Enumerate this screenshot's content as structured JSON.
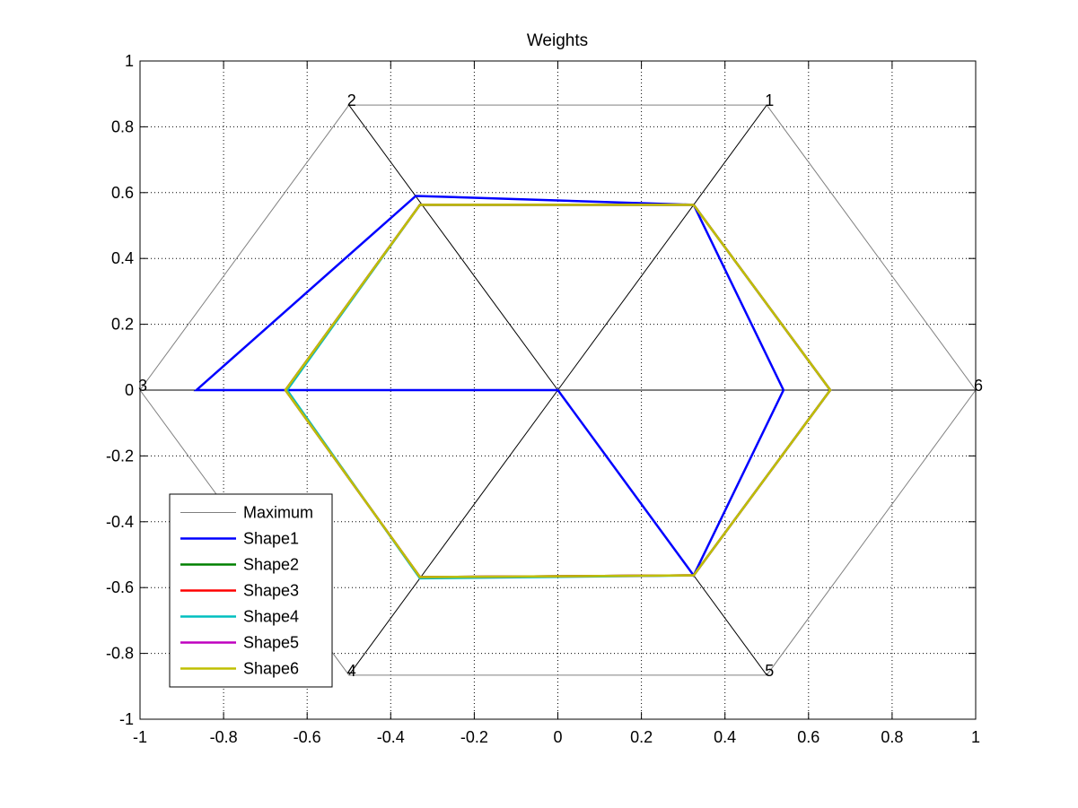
{
  "chart_data": {
    "type": "line",
    "title": "Weights",
    "xlabel": "",
    "ylabel": "",
    "xlim": [
      -1,
      1
    ],
    "ylim": [
      -1,
      1
    ],
    "xticks": [
      -1,
      -0.8,
      -0.6,
      -0.4,
      -0.2,
      0,
      0.2,
      0.4,
      0.6,
      0.8,
      1
    ],
    "yticks": [
      -1,
      -0.8,
      -0.6,
      -0.4,
      -0.2,
      0,
      0.2,
      0.4,
      0.6,
      0.8,
      1
    ],
    "xtick_labels": [
      "-1",
      "-0.8",
      "-0.6",
      "-0.4",
      "-0.2",
      "0",
      "0.2",
      "0.4",
      "0.6",
      "0.8",
      "1"
    ],
    "ytick_labels": [
      "-1",
      "-0.8",
      "-0.6",
      "-0.4",
      "-0.2",
      "0",
      "0.2",
      "0.4",
      "0.6",
      "0.8",
      "1"
    ],
    "grid": true,
    "grid_style": "dotted",
    "legend_position": "bottom-left",
    "spokes": {
      "color": "#000000",
      "segments": [
        [
          [
            -0.5,
            0.866
          ],
          [
            0.5,
            -0.866
          ]
        ],
        [
          [
            0.5,
            0.866
          ],
          [
            -0.5,
            -0.866
          ]
        ],
        [
          [
            -1,
            0
          ],
          [
            1,
            0
          ]
        ]
      ]
    },
    "vertices": [
      {
        "label": "1",
        "x": 0.5,
        "y": 0.866
      },
      {
        "label": "2",
        "x": -0.5,
        "y": 0.866
      },
      {
        "label": "3",
        "x": -1,
        "y": 0
      },
      {
        "label": "4",
        "x": -0.5,
        "y": -0.866
      },
      {
        "label": "5",
        "x": 0.5,
        "y": -0.866
      },
      {
        "label": "6",
        "x": 1,
        "y": 0
      }
    ],
    "series": [
      {
        "name": "Maximum",
        "color": "#808080",
        "width": 1,
        "x": [
          0.5,
          -0.5,
          -1,
          -0.5,
          0.5,
          1,
          0.5
        ],
        "y": [
          0.866,
          0.866,
          0,
          -0.866,
          -0.866,
          0,
          0.866
        ]
      },
      {
        "name": "Shape1",
        "color": "#0000ff",
        "width": 2.5,
        "x": [
          0.325,
          -0.34,
          -0.865,
          0,
          0.325,
          0.54,
          0.325
        ],
        "y": [
          0.563,
          0.59,
          0,
          0,
          -0.563,
          0,
          0.563
        ]
      },
      {
        "name": "Shape2",
        "color": "#008000",
        "width": 2.5,
        "x": [
          0.325,
          -0.33,
          -0.652,
          -0.33,
          0.325,
          0.652,
          0.325
        ],
        "y": [
          0.563,
          0.563,
          0,
          -0.568,
          -0.563,
          0,
          0.563
        ]
      },
      {
        "name": "Shape3",
        "color": "#ff0000",
        "width": 2.5,
        "x": [
          0.325,
          -0.33,
          -0.652,
          -0.33,
          0.325,
          0.652,
          0.325
        ],
        "y": [
          0.563,
          0.563,
          0,
          -0.568,
          -0.563,
          0,
          0.563
        ]
      },
      {
        "name": "Shape4",
        "color": "#00bfbf",
        "width": 2.5,
        "x": [
          0.325,
          -0.33,
          -0.648,
          -0.33,
          0.325,
          0.652,
          0.325
        ],
        "y": [
          0.563,
          0.563,
          0,
          -0.572,
          -0.563,
          0,
          0.563
        ]
      },
      {
        "name": "Shape5",
        "color": "#bf00bf",
        "width": 2.5,
        "x": [
          0.325,
          -0.33,
          -0.652,
          -0.33,
          0.325,
          0.652,
          0.325
        ],
        "y": [
          0.563,
          0.563,
          0,
          -0.568,
          -0.563,
          0,
          0.563
        ]
      },
      {
        "name": "Shape6",
        "color": "#bfbf00",
        "width": 2.5,
        "x": [
          0.325,
          -0.33,
          -0.652,
          -0.33,
          0.325,
          0.652,
          0.325
        ],
        "y": [
          0.563,
          0.563,
          0,
          -0.568,
          -0.563,
          0,
          0.563
        ]
      }
    ]
  }
}
